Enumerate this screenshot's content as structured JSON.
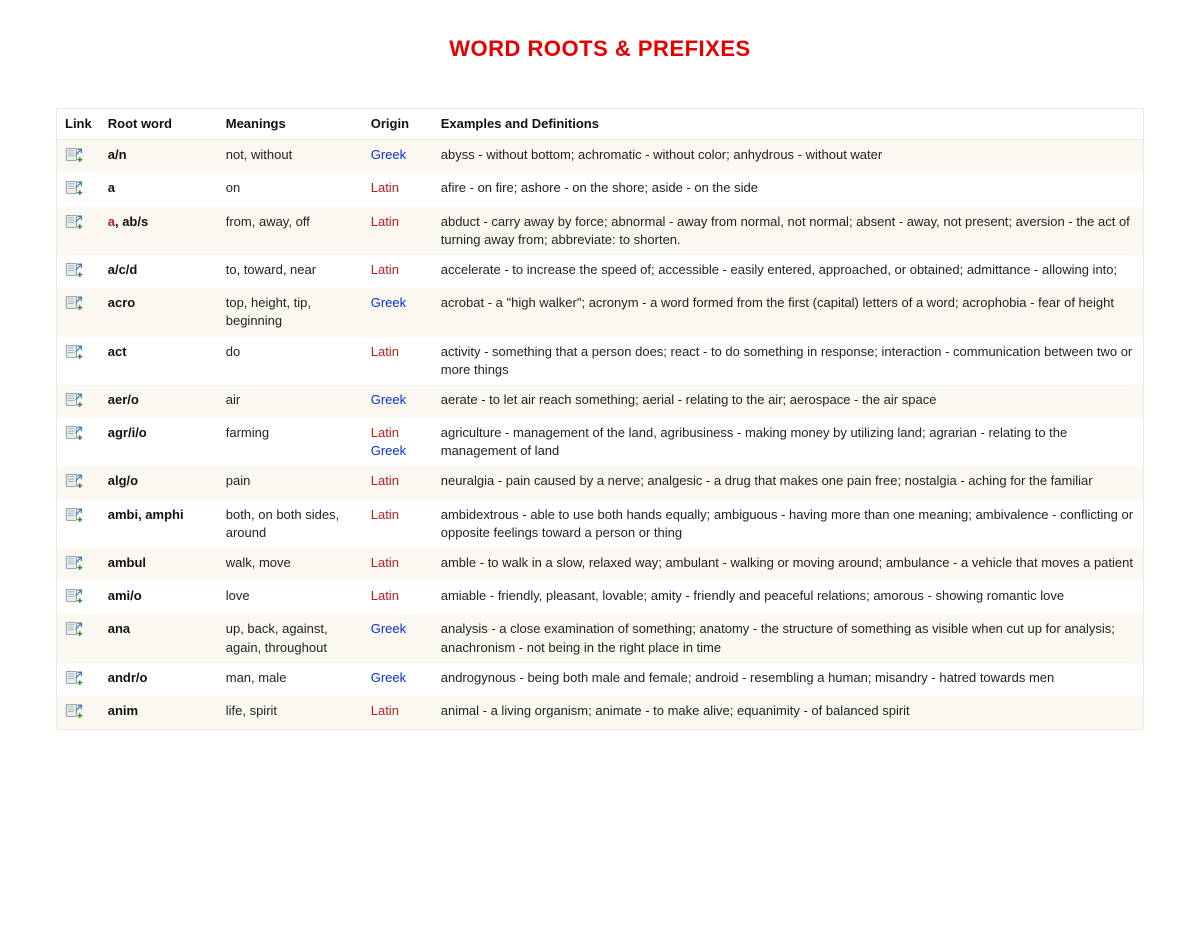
{
  "title": "WORD ROOTS & PREFIXES",
  "columns": [
    "Link",
    "Root word",
    "Meanings",
    "Origin",
    "Examples and Definitions"
  ],
  "origin_colors": {
    "Greek": "#0033cc",
    "Latin": "#b22222"
  },
  "root_link_color": "#b22222",
  "row_alt_bg": "#fbf8f2",
  "icon": {
    "fill_page": "#e9ecef",
    "stroke_page": "#808a94",
    "arrow_color": "#3a7fbf",
    "plus_color": "#2d8f2d"
  },
  "rows": [
    {
      "root_plain": "a/n",
      "root_linked": null,
      "meanings": "not, without",
      "origins": [
        "Greek"
      ],
      "examples": "abyss - without bottom; achromatic - without color; anhydrous - without water"
    },
    {
      "root_plain": "a",
      "root_linked": null,
      "meanings": "on",
      "origins": [
        "Latin"
      ],
      "examples": "afire - on fire; ashore - on the shore; aside - on the side"
    },
    {
      "root_plain": null,
      "root_linked": "a",
      "root_after_linked": ", ab/s",
      "meanings": "from, away, off",
      "origins": [
        "Latin"
      ],
      "examples": "abduct - carry away by force; abnormal - away from normal, not normal; absent - away, not present; aversion - the act of turning away from; abbreviate: to shorten."
    },
    {
      "root_plain": "a/c/d",
      "root_linked": null,
      "meanings": "to, toward, near",
      "origins": [
        "Latin"
      ],
      "examples": "accelerate - to increase the speed of; accessible - easily entered, approached, or obtained; admittance - allowing into;"
    },
    {
      "root_plain": "acro",
      "root_linked": null,
      "meanings": "top, height, tip, beginning",
      "origins": [
        "Greek"
      ],
      "examples": "acrobat - a \"high walker\"; acronym - a word formed from the first (capital) letters of a word; acrophobia - fear of height"
    },
    {
      "root_plain": "act",
      "root_linked": null,
      "meanings": "do",
      "origins": [
        "Latin"
      ],
      "examples": "activity - something that a person does; react - to do something in response; interaction - communication between two or more things"
    },
    {
      "root_plain": "aer/o",
      "root_linked": null,
      "meanings": "air",
      "origins": [
        "Greek"
      ],
      "examples": "aerate - to let air reach something; aerial - relating to the air; aerospace - the air space"
    },
    {
      "root_plain": "agr/i/o",
      "root_linked": null,
      "meanings": "farming",
      "origins": [
        "Latin",
        "Greek"
      ],
      "examples": "agriculture - management of the land, agribusiness - making money by utilizing land; agrarian - relating to the management of land"
    },
    {
      "root_plain": "alg/o",
      "root_linked": null,
      "meanings": "pain",
      "origins": [
        "Latin"
      ],
      "examples": "neuralgia - pain caused by a nerve; analgesic - a drug that makes one pain free; nostalgia - aching for the familiar"
    },
    {
      "root_plain": "ambi, amphi",
      "root_linked": null,
      "meanings": "both, on both sides, around",
      "origins": [
        "Latin"
      ],
      "examples": "ambidextrous - able to use both hands equally; ambiguous - having more than one meaning; ambivalence - conflicting or opposite feelings toward a person or thing"
    },
    {
      "root_plain": "ambul",
      "root_linked": null,
      "meanings": "walk, move",
      "origins": [
        "Latin"
      ],
      "examples": "amble - to walk in a slow, relaxed way; ambulant - walking or moving around; ambulance - a vehicle that moves a patient"
    },
    {
      "root_plain": "ami/o",
      "root_linked": null,
      "meanings": "love",
      "origins": [
        "Latin"
      ],
      "examples": "amiable - friendly, pleasant, lovable; amity - friendly and peaceful relations; amorous - showing romantic love"
    },
    {
      "root_plain": "ana",
      "root_linked": null,
      "meanings": "up, back, against, again, throughout",
      "origins": [
        "Greek"
      ],
      "examples": "analysis - a close examination of something; anatomy - the structure of something as visible when cut up for analysis; anachronism - not being in the right place in time"
    },
    {
      "root_plain": "andr/o",
      "root_linked": null,
      "meanings": "man, male",
      "origins": [
        "Greek"
      ],
      "examples": "androgynous - being both male and female; android - resembling a human; misandry - hatred towards men"
    },
    {
      "root_plain": "anim",
      "root_linked": null,
      "meanings": "life, spirit",
      "origins": [
        "Latin"
      ],
      "examples": "animal - a living organism; animate - to make alive; equanimity - of balanced spirit"
    }
  ]
}
